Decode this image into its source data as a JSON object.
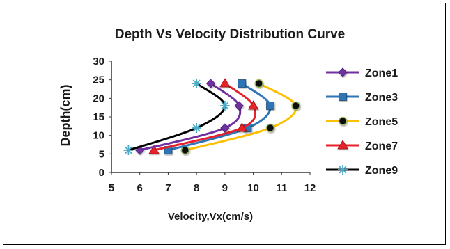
{
  "chart_data": {
    "type": "line",
    "title": "Depth Vs Velocity Distribution  Curve",
    "xlabel": "Velocity,Vx(cm/s)",
    "ylabel": "Depth(cm)",
    "xlim": [
      5,
      12
    ],
    "ylim": [
      0,
      30
    ],
    "xticks": [
      5,
      6,
      7,
      8,
      9,
      10,
      11,
      12
    ],
    "yticks": [
      0,
      5,
      10,
      15,
      20,
      25,
      30
    ],
    "grid": false,
    "legend_position": "right",
    "series": [
      {
        "name": "Zone1",
        "color": "#7030A0",
        "marker": "diamond",
        "points": [
          [
            6.0,
            6
          ],
          [
            9.0,
            12
          ],
          [
            9.5,
            18
          ],
          [
            8.5,
            24
          ]
        ]
      },
      {
        "name": "Zone3",
        "color": "#2E75B6",
        "marker": "square",
        "points": [
          [
            7.0,
            6
          ],
          [
            9.8,
            12
          ],
          [
            10.6,
            18
          ],
          [
            9.6,
            24
          ]
        ]
      },
      {
        "name": "Zone5",
        "color": "#FFC000",
        "marker": "circle",
        "points": [
          [
            7.6,
            6
          ],
          [
            10.6,
            12
          ],
          [
            11.5,
            18
          ],
          [
            10.2,
            24
          ]
        ]
      },
      {
        "name": "Zone7",
        "color": "#E8202A",
        "marker": "triangle",
        "points": [
          [
            6.5,
            6
          ],
          [
            9.6,
            12
          ],
          [
            10.0,
            18
          ],
          [
            9.0,
            24
          ]
        ]
      },
      {
        "name": "Zone9",
        "color": "#000000",
        "marker": "star",
        "points": [
          [
            5.6,
            6
          ],
          [
            8.0,
            12
          ],
          [
            9.0,
            18
          ],
          [
            8.0,
            24
          ]
        ]
      }
    ]
  }
}
